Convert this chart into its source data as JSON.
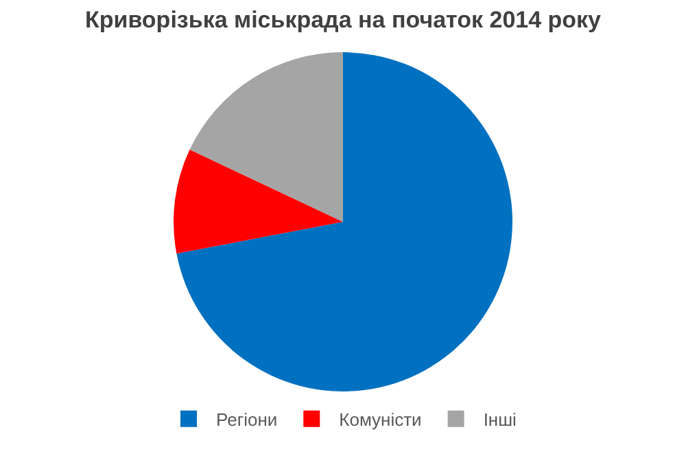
{
  "chart_data": {
    "type": "pie",
    "title": "Криворізька міськрада на початок 2014 року",
    "categories": [
      "Регіони",
      "Комуністи",
      "Інші"
    ],
    "values": [
      72,
      10,
      18
    ],
    "colors": [
      "#0070c0",
      "#ff0000",
      "#a5a5a5"
    ],
    "legend": "bottom"
  }
}
